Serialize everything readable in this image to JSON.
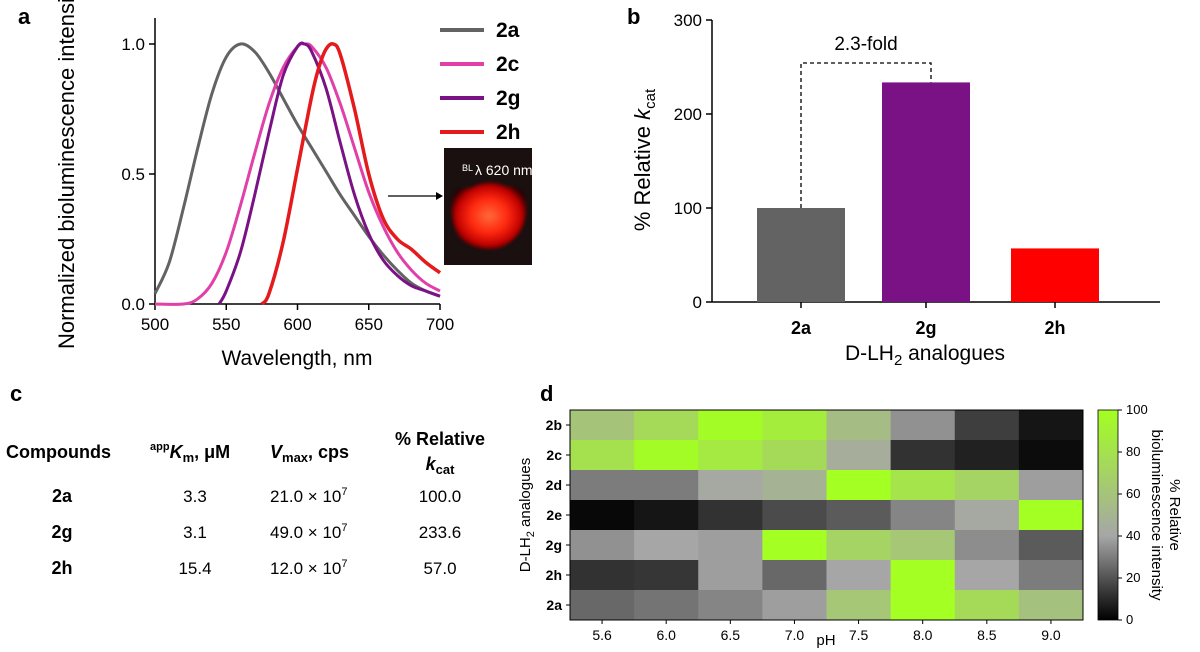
{
  "panels": {
    "a": "a",
    "b": "b",
    "c": "c",
    "d": "d"
  },
  "colors": {
    "2a": "#636363",
    "2c": "#e040a8",
    "2g": "#7a1285",
    "2h": "#e41a1c"
  },
  "chart_data": [
    {
      "type": "line",
      "xlabel": "Wavelength, nm",
      "ylabel": "Normalized bioluminescence intensity",
      "xlim": [
        500,
        700
      ],
      "ylim": [
        0,
        1.1
      ],
      "xticks": [
        "500",
        "550",
        "600",
        "650",
        "700"
      ],
      "yticks": [
        "0.0",
        "0.5",
        "1.0"
      ],
      "legend_position": "right",
      "inset_label_prefix": "BL",
      "inset_label": "λ 620 nm",
      "series": [
        {
          "name": "2a",
          "color": "#636363",
          "x": [
            500,
            510,
            520,
            530,
            540,
            550,
            560,
            570,
            580,
            590,
            600,
            610,
            620,
            630,
            640,
            650,
            660,
            670,
            680,
            690,
            700
          ],
          "y": [
            0.04,
            0.16,
            0.37,
            0.6,
            0.81,
            0.95,
            1.0,
            0.97,
            0.89,
            0.79,
            0.69,
            0.6,
            0.51,
            0.42,
            0.34,
            0.26,
            0.19,
            0.13,
            0.08,
            0.05,
            0.03
          ]
        },
        {
          "name": "2c",
          "color": "#e040a8",
          "x": [
            500,
            520,
            530,
            540,
            550,
            560,
            570,
            580,
            590,
            600,
            605,
            610,
            620,
            630,
            640,
            650,
            660,
            670,
            680,
            690,
            700
          ],
          "y": [
            0.0,
            0.0,
            0.02,
            0.08,
            0.2,
            0.38,
            0.58,
            0.77,
            0.91,
            0.99,
            1.0,
            0.99,
            0.91,
            0.77,
            0.6,
            0.43,
            0.3,
            0.2,
            0.13,
            0.08,
            0.05
          ]
        },
        {
          "name": "2g",
          "color": "#7a1285",
          "x": [
            545,
            550,
            560,
            570,
            580,
            590,
            600,
            605,
            610,
            620,
            630,
            640,
            650,
            660,
            670,
            680,
            690,
            700
          ],
          "y": [
            0.0,
            0.05,
            0.2,
            0.42,
            0.66,
            0.88,
            0.99,
            1.0,
            0.97,
            0.83,
            0.62,
            0.42,
            0.27,
            0.17,
            0.11,
            0.07,
            0.05,
            0.03
          ]
        },
        {
          "name": "2h",
          "color": "#e41a1c",
          "x": [
            575,
            580,
            590,
            600,
            610,
            615,
            620,
            625,
            630,
            640,
            650,
            660,
            670,
            680,
            690,
            700
          ],
          "y": [
            0.0,
            0.04,
            0.24,
            0.52,
            0.8,
            0.91,
            0.98,
            1.0,
            0.96,
            0.75,
            0.5,
            0.33,
            0.25,
            0.21,
            0.16,
            0.12
          ]
        }
      ]
    },
    {
      "type": "bar",
      "categories": [
        "2a",
        "2g",
        "2h"
      ],
      "values": [
        100,
        233.6,
        57
      ],
      "colors": [
        "#636363",
        "#7a1285",
        "#ff0000"
      ],
      "ylim": [
        0,
        300
      ],
      "yticks": [
        "0",
        "100",
        "200",
        "300"
      ],
      "ylabel_prefix": "% Relative ",
      "ylabel_k": "k",
      "ylabel_sub": "cat",
      "xlabel_prefix": "D-LH",
      "xlabel_sub": "2",
      "xlabel_suffix": " analogues",
      "annotation": "2.3-fold"
    },
    {
      "type": "table",
      "headers": {
        "compounds": "Compounds",
        "km_sup": "app",
        "km_k": "K",
        "km_sub": "m",
        "km_unit": ", μM",
        "vmax_v": "V",
        "vmax_sub": "max",
        "vmax_unit": ", cps",
        "rel_line1": "% Relative",
        "rel_k": "k",
        "rel_sub": "cat"
      },
      "rows": [
        {
          "compound": "2a",
          "km": "3.3",
          "vmax": "21.0 × 10",
          "vmax_exp": "7",
          "rel": "100.0"
        },
        {
          "compound": "2g",
          "km": "3.1",
          "vmax": "49.0 × 10",
          "vmax_exp": "7",
          "rel": "233.6"
        },
        {
          "compound": "2h",
          "km": "15.4",
          "vmax": "12.0 × 10",
          "vmax_exp": "7",
          "rel": "57.0"
        }
      ]
    },
    {
      "type": "heatmap",
      "rows": [
        "2b",
        "2c",
        "2d",
        "2e",
        "2g",
        "2h",
        "2a"
      ],
      "columns": [
        "5.6",
        "6.0",
        "6.5",
        "7.0",
        "7.5",
        "8.0",
        "8.5",
        "9.0"
      ],
      "xlabel": "pH",
      "ylabel_prefix": "D-LH",
      "ylabel_sub": "2",
      "ylabel_suffix": " analogues",
      "colorbar_label_line1": "% Relative",
      "colorbar_label_line2": "bioluminescence intensity",
      "colorbar_ticks": [
        "0",
        "20",
        "40",
        "60",
        "80",
        "100"
      ],
      "values": [
        [
          60,
          75,
          98,
          88,
          55,
          35,
          15,
          5
        ],
        [
          80,
          98,
          85,
          75,
          45,
          12,
          8,
          3
        ],
        [
          30,
          30,
          42,
          48,
          100,
          82,
          70,
          38
        ],
        [
          2,
          5,
          12,
          18,
          22,
          32,
          42,
          100
        ],
        [
          35,
          40,
          38,
          100,
          70,
          62,
          34,
          22
        ],
        [
          12,
          13,
          38,
          25,
          40,
          100,
          40,
          30
        ],
        [
          25,
          28,
          32,
          38,
          62,
          100,
          75,
          58
        ]
      ]
    }
  ]
}
